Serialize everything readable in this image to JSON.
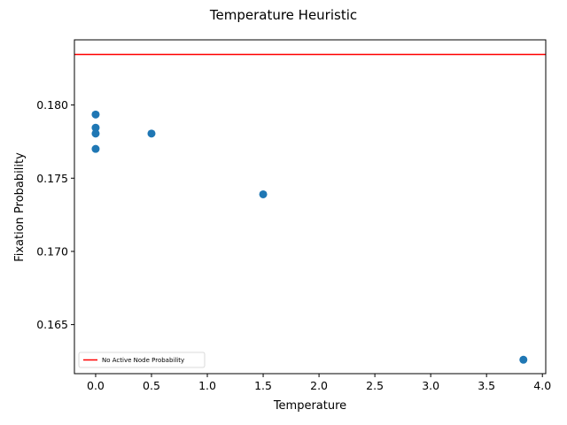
{
  "chart_data": {
    "type": "scatter",
    "title": "Temperature Heuristic",
    "xlabel": "Temperature",
    "ylabel": "Fixation Probability",
    "xlim": [
      -0.19,
      4.03
    ],
    "ylim": [
      0.16165,
      0.18445
    ],
    "xticks": [
      0.0,
      0.5,
      1.0,
      1.5,
      2.0,
      2.5,
      3.0,
      3.5,
      4.0
    ],
    "xtick_labels": [
      "0.0",
      "0.5",
      "1.0",
      "1.5",
      "2.0",
      "2.5",
      "3.0",
      "3.5",
      "4.0"
    ],
    "yticks": [
      0.165,
      0.17,
      0.175,
      0.18
    ],
    "ytick_labels": [
      "0.165",
      "0.170",
      "0.175",
      "0.180"
    ],
    "grid": false,
    "legend_position": "lower-left",
    "series": [
      {
        "type": "scatter",
        "color": "#1f77b4",
        "points": [
          {
            "x": 0.0,
            "y": 0.17935
          },
          {
            "x": 0.0,
            "y": 0.17845
          },
          {
            "x": 0.0,
            "y": 0.17805
          },
          {
            "x": 0.0,
            "y": 0.177
          },
          {
            "x": 0.5,
            "y": 0.17805
          },
          {
            "x": 1.5,
            "y": 0.1739
          },
          {
            "x": 3.83,
            "y": 0.1626
          }
        ]
      },
      {
        "type": "hline",
        "name": "No Active Node Probability",
        "color": "#ff0000",
        "y": 0.18345
      }
    ]
  }
}
